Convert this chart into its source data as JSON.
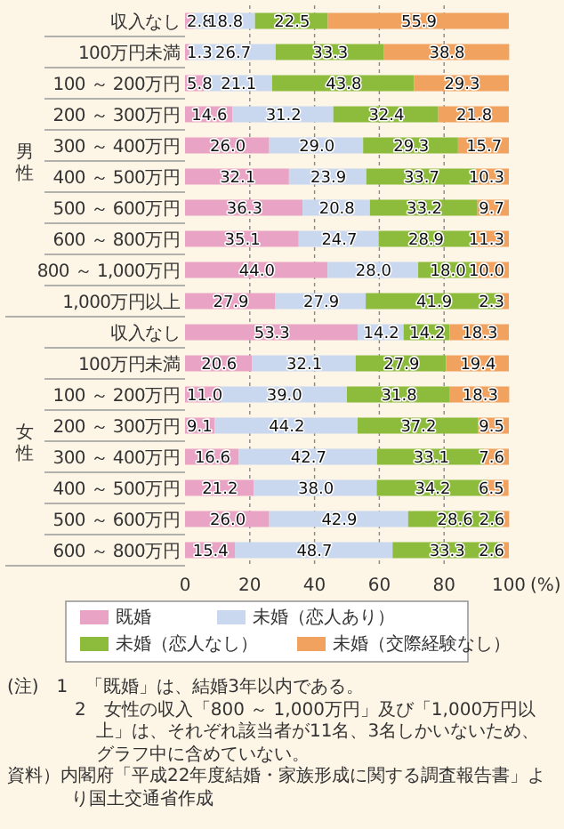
{
  "chart_data": {
    "type": "bar",
    "orientation": "horizontal",
    "stacked": true,
    "grid": "x",
    "legend": "bottom",
    "xlabel": "(%)",
    "categories": [
      "収入なし",
      "100万円未満",
      "100 ～ 200万円",
      "200 ～ 300万円",
      "300 ～ 400万円",
      "400 ～ 500万円",
      "500 ～ 600万円",
      "600 ～ 800万円",
      "800 ～ 1,000万円",
      "1,000万円以上",
      "収入なし",
      "100万円未満",
      "100 ～ 200万円",
      "200 ～ 300万円",
      "300 ～ 400万円",
      "400 ～ 500万円",
      "500 ～ 600万円",
      "600 ～ 800万円"
    ],
    "xlim": [
      0,
      100
    ],
    "xticks": [
      0,
      20,
      40,
      60,
      80,
      100
    ],
    "series": [
      {
        "name": "既婚",
        "color": "#e9a3c4",
        "values": [
          2.8,
          1.3,
          5.8,
          14.6,
          26.0,
          32.1,
          36.3,
          35.1,
          44.0,
          27.9,
          53.3,
          20.6,
          11.0,
          9.1,
          16.6,
          21.2,
          26.0,
          15.4
        ],
        "value_labels": [
          "2.8",
          "1.3",
          "5.8",
          "14.6",
          "26.0",
          "32.1",
          "36.3",
          "35.1",
          "44.0",
          "27.9",
          "53.3",
          "20.6",
          "11.0",
          "9.1",
          "16.6",
          "21.2",
          "26.0",
          "15.4"
        ]
      },
      {
        "name": "未婚（恋人あり）",
        "color": "#c9d7ef",
        "values": [
          18.8,
          26.7,
          21.1,
          31.2,
          29.0,
          23.9,
          20.8,
          24.7,
          28.0,
          27.9,
          14.2,
          32.1,
          39.0,
          44.2,
          42.7,
          38.0,
          42.9,
          48.7
        ],
        "value_labels": [
          "18.8",
          "26.7",
          "21.1",
          "31.2",
          "29.0",
          "23.9",
          "20.8",
          "24.7",
          "28.0",
          "27.9",
          "14.2",
          "32.1",
          "39.0",
          "44.2",
          "42.7",
          "38.0",
          "42.9",
          "48.7"
        ]
      },
      {
        "name": "未婚（恋人なし）",
        "color": "#8dbb3c",
        "values": [
          22.5,
          33.3,
          43.8,
          32.4,
          29.3,
          33.7,
          33.2,
          28.9,
          18.0,
          41.9,
          14.2,
          27.9,
          31.8,
          37.2,
          33.1,
          34.2,
          28.6,
          33.3
        ],
        "value_labels": [
          "22.5",
          "33.3",
          "43.8",
          "32.4",
          "29.3",
          "33.7",
          "33.2",
          "28.9",
          "18.0",
          "41.9",
          "14.2",
          "27.9",
          "31.8",
          "37.2",
          "33.1",
          "34.2",
          "28.6",
          "33.3"
        ]
      },
      {
        "name": "未婚（交際経験なし）",
        "color": "#f0a25e",
        "values": [
          55.9,
          38.8,
          29.3,
          21.8,
          15.7,
          10.3,
          9.7,
          11.3,
          10.0,
          2.3,
          18.3,
          19.4,
          18.3,
          9.5,
          7.6,
          6.5,
          2.6,
          2.6
        ],
        "value_labels": [
          "55.9",
          "38.8",
          "29.3",
          "21.8",
          "15.7",
          "10.3",
          "9.7",
          "11.3",
          "10.0",
          "2.3",
          "18.3",
          "19.4",
          "18.3",
          "9.5",
          "7.6",
          "6.5",
          "2.6",
          "2.6"
        ]
      }
    ],
    "annotations": [
      "男性",
      "女性",
      "(注)　1　「既婚」は、結婚3年以内である。",
      "2　女性の収入「800 ～ 1,000万円」及び「1,000万円以上」は、それぞれ該当者が11名、3名しかいないため、グラフ中に含めていない。",
      "資料）内閣府「平成22年度結婚・家族形成に関する調査報告書」より国土交通省作成"
    ]
  }
}
